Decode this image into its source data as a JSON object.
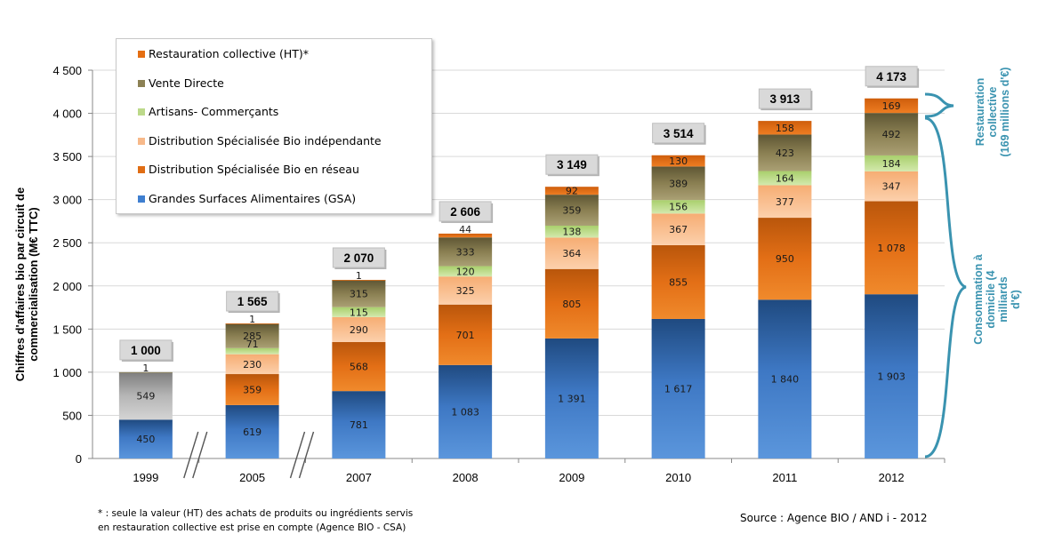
{
  "chart_data": {
    "type": "bar",
    "stacked": true,
    "ylabel": "Chiffres d'affaires bio par circuit de commercialisation (M€ TTC)",
    "ylim": [
      0,
      4500
    ],
    "yticks": [
      "0",
      "500",
      "1 000",
      "1 500",
      "2 000",
      "2 500",
      "3 000",
      "3 500",
      "4 000",
      "4 500"
    ],
    "grid": true,
    "legend_position": "top-left",
    "categories": [
      "1999",
      "2005",
      "2007",
      "2008",
      "2009",
      "2010",
      "2011",
      "2012"
    ],
    "totals": [
      "1 000",
      "1 565",
      "2 070",
      "2 606",
      "3 149",
      "3 514",
      "3 913",
      "4 173"
    ],
    "series": [
      {
        "name": "Grandes Surfaces Alimentaires (GSA)",
        "color": "#3f7fd0",
        "values": [
          450,
          619,
          781,
          1083,
          1391,
          1617,
          1840,
          1903
        ],
        "labels": [
          "450",
          "619",
          "781",
          "1 083",
          "1 391",
          "1 617",
          "1 840",
          "1 903"
        ]
      },
      {
        "name": "Distribution Spécialisée Bio en réseau",
        "color": "#e06d14",
        "values": [
          0,
          359,
          568,
          701,
          805,
          855,
          950,
          1078
        ],
        "labels": [
          "",
          "359",
          "568",
          "701",
          "805",
          "855",
          "950",
          "1 078"
        ]
      },
      {
        "name": "Distribution Spécialisée Bio indépendante",
        "color": "#f7b98a",
        "values": [
          549,
          230,
          290,
          325,
          364,
          367,
          377,
          347
        ],
        "labels": [
          "549",
          "230",
          "290",
          "325",
          "364",
          "367",
          "377",
          "347"
        ]
      },
      {
        "name": "Artisans- Commerçants",
        "color": "#bcd98a",
        "values": [
          0,
          71,
          115,
          120,
          138,
          156,
          164,
          184
        ],
        "labels": [
          "",
          "71",
          "115",
          "120",
          "138",
          "156",
          "164",
          "184"
        ]
      },
      {
        "name": "Vente Directe",
        "color": "#8c8154",
        "values": [
          1,
          285,
          315,
          333,
          359,
          389,
          423,
          492
        ],
        "labels": [
          "1",
          "285",
          "315",
          "333",
          "359",
          "389",
          "423",
          "492"
        ]
      },
      {
        "name": "Restauration collective (HT)*",
        "color": "#e56e12",
        "values": [
          0,
          1,
          1,
          44,
          92,
          130,
          158,
          169
        ],
        "labels": [
          "",
          "1",
          "1",
          "44",
          "92",
          "130",
          "158",
          "169"
        ]
      }
    ],
    "first_bar_middle_color": "#a0a0a0",
    "annotations": {
      "restauration": "Restauration collective (169 millions d'€)",
      "domicile": "Consommation à domicile (4 milliards d'€)"
    }
  },
  "footnote_line1": "* : seule la valeur (HT) des achats de produits ou ingrédients servis",
  "footnote_line2": "en  restauration collective est prise en compte  (Agence  BIO - CSA)",
  "source": "Source  : Agence  BIO  / AND i - 2012",
  "side_labels": {
    "restauration_line1": "Restauration collective",
    "restauration_line2": "(169 millions d'€)",
    "domicile_line1": "Consommation à",
    "domicile_line2": "domicile (4 milliards",
    "domicile_line3": "d'€)"
  },
  "legend_order": [
    5,
    4,
    3,
    2,
    1,
    0
  ]
}
